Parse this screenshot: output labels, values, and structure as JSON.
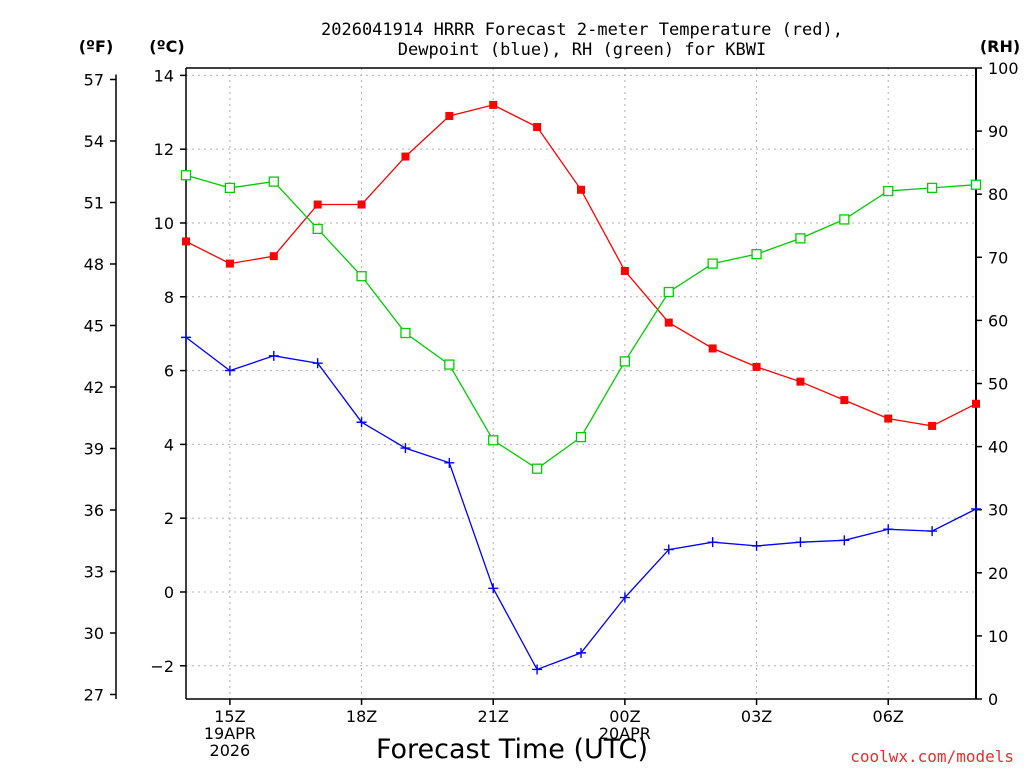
{
  "chart_data": {
    "type": "line",
    "title_line1": "2026041914 HRRR Forecast 2-meter Temperature (red),",
    "title_line2": "Dewpoint (blue), RH (green) for KBWI",
    "xlabel": "Forecast Time (UTC)",
    "credit": "coolwx.com/models",
    "left_outer_axis_label": "(ºF)",
    "left_inner_axis_label": "(ºC)",
    "right_axis_label": "(RH)",
    "celsius_range": [
      -2.9,
      14.2
    ],
    "rh_range": [
      0,
      100
    ],
    "celsius_ticks": [
      14,
      12,
      10,
      8,
      6,
      4,
      2,
      0,
      -2
    ],
    "celsius_tick_labels": [
      "14",
      "12",
      "10",
      "8",
      "6",
      "4",
      "2",
      "0",
      "−2"
    ],
    "fahrenheit_ticks": [
      57,
      54,
      51,
      48,
      45,
      42,
      39,
      36,
      33,
      30,
      27
    ],
    "rh_ticks": [
      100,
      90,
      80,
      70,
      60,
      50,
      40,
      30,
      20,
      10,
      0
    ],
    "x_hours": [
      14,
      15,
      16,
      17,
      18,
      19,
      20,
      21,
      22,
      23,
      0,
      1,
      2,
      3,
      4,
      5,
      6,
      7,
      8
    ],
    "x_tick_labels": [
      {
        "index": 1,
        "lines": [
          "15Z",
          "19APR",
          "2026"
        ]
      },
      {
        "index": 4,
        "lines": [
          "18Z"
        ]
      },
      {
        "index": 7,
        "lines": [
          "21Z"
        ]
      },
      {
        "index": 10,
        "lines": [
          "00Z",
          "20APR"
        ]
      },
      {
        "index": 13,
        "lines": [
          "03Z"
        ]
      },
      {
        "index": 16,
        "lines": [
          "06Z"
        ]
      }
    ],
    "series": [
      {
        "name": "Temperature",
        "unit": "C",
        "axis": "celsius",
        "color": "#ff0000",
        "marker": "square-filled",
        "values": [
          9.5,
          8.9,
          9.1,
          10.5,
          10.5,
          11.8,
          12.9,
          13.2,
          12.6,
          10.9,
          8.7,
          7.3,
          6.6,
          6.1,
          5.7,
          5.2,
          4.7,
          4.5,
          5.1
        ]
      },
      {
        "name": "Dewpoint",
        "unit": "C",
        "axis": "celsius",
        "color": "#0000ff",
        "marker": "plus",
        "values": [
          6.9,
          6.0,
          6.4,
          6.2,
          4.6,
          3.9,
          3.5,
          0.1,
          -2.1,
          -1.65,
          -0.15,
          1.15,
          1.35,
          1.25,
          1.35,
          1.4,
          1.7,
          1.65,
          2.25
        ]
      },
      {
        "name": "RH",
        "unit": "%",
        "axis": "rh",
        "color": "#00cc00",
        "marker": "square-open",
        "values": [
          83,
          81,
          82,
          74.5,
          67,
          58,
          53,
          41,
          36.5,
          41.5,
          53.5,
          64.5,
          69,
          70.5,
          73,
          76,
          80.5,
          81,
          81.5
        ]
      }
    ]
  }
}
